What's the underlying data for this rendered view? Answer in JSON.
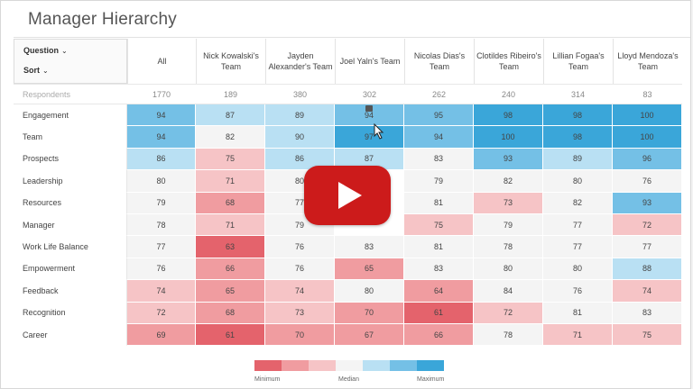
{
  "title": "Manager Hierarchy",
  "controls": {
    "question": "Question",
    "sort": "Sort"
  },
  "columns": [
    "All",
    "Nick Kowalski's Team",
    "Jayden Alexander's Team",
    "Joel Yaln's Team",
    "Nicolas Dias's Team",
    "Clotildes Ribeiro's Team",
    "Lillian Fogaa's Team",
    "Lloyd Mendoza's Team"
  ],
  "respondents": {
    "label": "Respondents",
    "values": [
      "1770",
      "189",
      "380",
      "302",
      "262",
      "240",
      "314",
      "83"
    ]
  },
  "rows": [
    {
      "label": "Engagement",
      "values": [
        "94",
        "87",
        "89",
        "94",
        "95",
        "98",
        "98",
        "100"
      ]
    },
    {
      "label": "Team",
      "values": [
        "94",
        "82",
        "90",
        "97",
        "94",
        "100",
        "98",
        "100"
      ]
    },
    {
      "label": "Prospects",
      "values": [
        "86",
        "75",
        "86",
        "87",
        "83",
        "93",
        "89",
        "96"
      ]
    },
    {
      "label": "Leadership",
      "values": [
        "80",
        "71",
        "80",
        "",
        "79",
        "82",
        "80",
        "76"
      ]
    },
    {
      "label": "Resources",
      "values": [
        "79",
        "68",
        "77",
        "",
        "81",
        "73",
        "82",
        "93"
      ]
    },
    {
      "label": "Manager",
      "values": [
        "78",
        "71",
        "79",
        "",
        "75",
        "79",
        "77",
        "72"
      ]
    },
    {
      "label": "Work Life Balance",
      "values": [
        "77",
        "63",
        "76",
        "83",
        "81",
        "78",
        "77",
        "77"
      ]
    },
    {
      "label": "Empowerment",
      "values": [
        "76",
        "66",
        "76",
        "65",
        "83",
        "80",
        "80",
        "88"
      ]
    },
    {
      "label": "Feedback",
      "values": [
        "74",
        "65",
        "74",
        "80",
        "64",
        "84",
        "76",
        "74"
      ]
    },
    {
      "label": "Recognition",
      "values": [
        "72",
        "68",
        "73",
        "70",
        "61",
        "72",
        "81",
        "83"
      ]
    },
    {
      "label": "Career",
      "values": [
        "69",
        "61",
        "70",
        "67",
        "66",
        "78",
        "71",
        "75"
      ]
    }
  ],
  "legend": {
    "minimum": "Minimum",
    "median": "Median",
    "maximum": "Maximum"
  },
  "colors": {
    "max": "#3aa6d9",
    "high": "#74c0e6",
    "midhigh": "#b9e0f3",
    "neutral": "#f4f4f4",
    "midlow": "#f6c4c6",
    "low": "#f09ca0",
    "min": "#e4636c",
    "play": "#cc1b1b"
  }
}
